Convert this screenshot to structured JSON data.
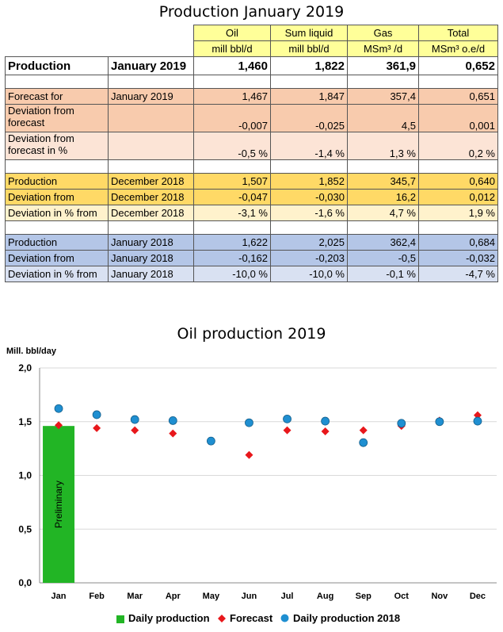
{
  "table_title": "Production January 2019",
  "headers": [
    {
      "name": "Oil",
      "unit": "mill bbl/d"
    },
    {
      "name": "Sum liquid",
      "unit": "mill bbl/d"
    },
    {
      "name": "Gas",
      "unit": "MSm³ /d"
    },
    {
      "name": "Total",
      "unit": "MSm³ o.e/d"
    }
  ],
  "rows": {
    "production": {
      "label": "Production",
      "period": "January 2019",
      "values": [
        "1,460",
        "1,822",
        "361,9",
        "0,652"
      ]
    },
    "forecast": {
      "label": "Forecast for",
      "period": "January 2019",
      "values": [
        "1,467",
        "1,847",
        "357,4",
        "0,651"
      ]
    },
    "dev_forecast": {
      "label": "Deviation from forecast",
      "period": "",
      "values": [
        "-0,007",
        "-0,025",
        "4,5",
        "0,001"
      ]
    },
    "dev_forecast_pct": {
      "label": "Deviation from forecast in %",
      "period": "",
      "values": [
        "-0,5 %",
        "-1,4 %",
        "1,3 %",
        "0,2 %"
      ]
    },
    "prod_dec": {
      "label": "Production",
      "period": "December 2018",
      "values": [
        "1,507",
        "1,852",
        "345,7",
        "0,640"
      ]
    },
    "dev_dec": {
      "label": "Deviation from",
      "period": "December 2018",
      "values": [
        "-0,047",
        "-0,030",
        "16,2",
        "0,012"
      ]
    },
    "dev_dec_pct": {
      "label": "Deviation  in % from",
      "period": "December 2018",
      "values": [
        "-3,1 %",
        "-1,6 %",
        "4,7 %",
        "1,9 %"
      ]
    },
    "prod_jan18": {
      "label": "Production",
      "period": "January 2018",
      "values": [
        "1,622",
        "2,025",
        "362,4",
        "0,684"
      ]
    },
    "dev_jan18": {
      "label": "Deviation from",
      "period": "January 2018",
      "values": [
        "-0,162",
        "-0,203",
        "-0,5",
        "-0,032"
      ]
    },
    "dev_jan18_pct": {
      "label": "Deviation  in % from",
      "period": "January 2018",
      "values": [
        "-10,0 %",
        "-10,0 %",
        "-0,1 %",
        "-4,7 %"
      ]
    }
  },
  "chart_data": {
    "type": "bar",
    "title": "Oil production 2019",
    "ylabel": "Mill. bbl/day",
    "ylim": [
      0,
      2.0
    ],
    "yticks": [
      "0,0",
      "0,5",
      "1,0",
      "1,5",
      "2,0"
    ],
    "ytick_values": [
      0,
      0.5,
      1.0,
      1.5,
      2.0
    ],
    "categories": [
      "Jan",
      "Feb",
      "Mar",
      "Apr",
      "May",
      "Jun",
      "Jul",
      "Aug",
      "Sep",
      "Oct",
      "Nov",
      "Dec"
    ],
    "bar_annotation": "Preliminary",
    "series": [
      {
        "name": "Daily production",
        "kind": "bar",
        "color": "#22b525",
        "values": [
          1.46,
          null,
          null,
          null,
          null,
          null,
          null,
          null,
          null,
          null,
          null,
          null
        ]
      },
      {
        "name": "Forecast",
        "kind": "diamond",
        "color": "#e8171b",
        "values": [
          1.467,
          1.44,
          1.42,
          1.39,
          1.32,
          1.19,
          1.42,
          1.41,
          1.42,
          1.46,
          1.51,
          1.56
        ]
      },
      {
        "name": "Daily production 2018",
        "kind": "circle",
        "color": "#1f8fd1",
        "values": [
          1.622,
          1.565,
          1.52,
          1.51,
          1.32,
          1.49,
          1.525,
          1.505,
          1.305,
          1.485,
          1.5,
          1.505
        ]
      }
    ]
  }
}
